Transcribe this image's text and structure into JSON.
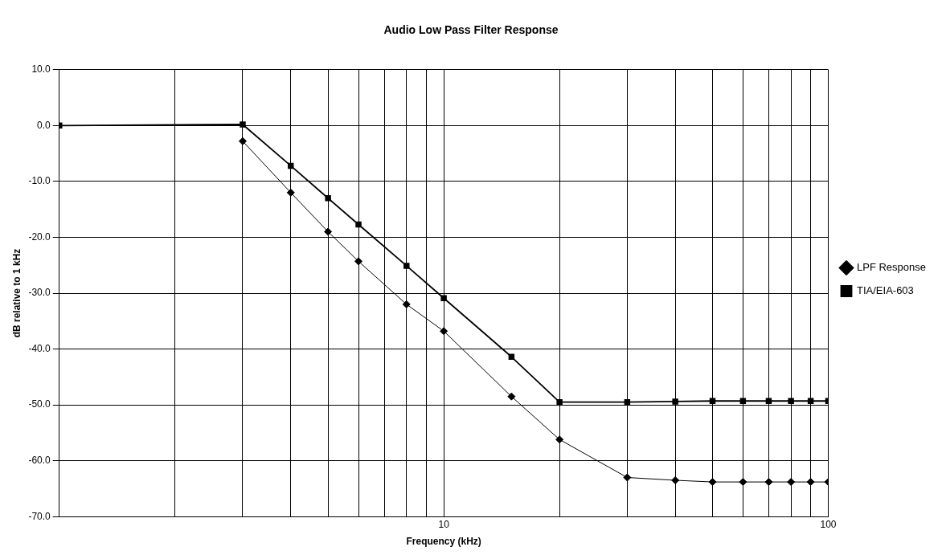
{
  "chart_data": {
    "type": "line",
    "title": "Audio Low Pass Filter Response",
    "xlabel": "Frequency (kHz)",
    "ylabel": "dB relative to 1 kHz",
    "log": "x",
    "grid": true,
    "legend": "right",
    "xlim": [
      1,
      100
    ],
    "ylim": [
      -70,
      10
    ],
    "xticks": [
      {
        "value": 1,
        "label": null
      },
      {
        "value": 2,
        "label": null
      },
      {
        "value": 3,
        "label": null
      },
      {
        "value": 4,
        "label": null
      },
      {
        "value": 5,
        "label": null
      },
      {
        "value": 6,
        "label": null
      },
      {
        "value": 7,
        "label": null
      },
      {
        "value": 8,
        "label": null
      },
      {
        "value": 9,
        "label": null
      },
      10,
      {
        "value": 20,
        "label": null
      },
      {
        "value": 30,
        "label": null
      },
      {
        "value": 40,
        "label": null
      },
      {
        "value": 50,
        "label": null
      },
      {
        "value": 60,
        "label": null
      },
      {
        "value": 70,
        "label": null
      },
      {
        "value": 80,
        "label": null
      },
      {
        "value": 90,
        "label": null
      },
      100
    ],
    "yticks": [
      {
        "value": 10,
        "label": "10.0"
      },
      {
        "value": 0,
        "label": "0.0"
      },
      {
        "value": -10,
        "label": "-10.0"
      },
      {
        "value": -20,
        "label": "-20.0"
      },
      {
        "value": -30,
        "label": "-30.0"
      },
      {
        "value": -40,
        "label": "-40.0"
      },
      {
        "value": -50,
        "label": "-50.0"
      },
      {
        "value": -60,
        "label": "-60.0"
      },
      {
        "value": -70,
        "label": "-70.0"
      }
    ],
    "series": [
      {
        "name": "LPF Response",
        "color": "#000000",
        "marker": "diamond",
        "x": [
          3,
          4,
          5,
          6,
          8,
          10,
          15,
          20,
          30,
          40,
          50,
          60,
          70,
          80,
          90,
          100
        ],
        "values": [
          -2.8,
          -12,
          -19,
          -24.3,
          -32,
          -36.8,
          -48.5,
          -56.2,
          -63,
          -63.5,
          -63.8,
          -63.8,
          -63.8,
          -63.8,
          -63.8,
          -63.8
        ]
      },
      {
        "name": "TIA/EIA-603",
        "color": "#000000",
        "marker": "square",
        "x": [
          1,
          3,
          4,
          5,
          6,
          8,
          10,
          15,
          20,
          30,
          40,
          50,
          60,
          70,
          80,
          90,
          100
        ],
        "values": [
          0,
          0.2,
          -7.2,
          -13,
          -17.7,
          -25.1,
          -30.9,
          -41.4,
          -49.5,
          -49.5,
          -49.4,
          -49.3,
          -49.3,
          -49.3,
          -49.3,
          -49.3,
          -49.3
        ]
      }
    ]
  }
}
